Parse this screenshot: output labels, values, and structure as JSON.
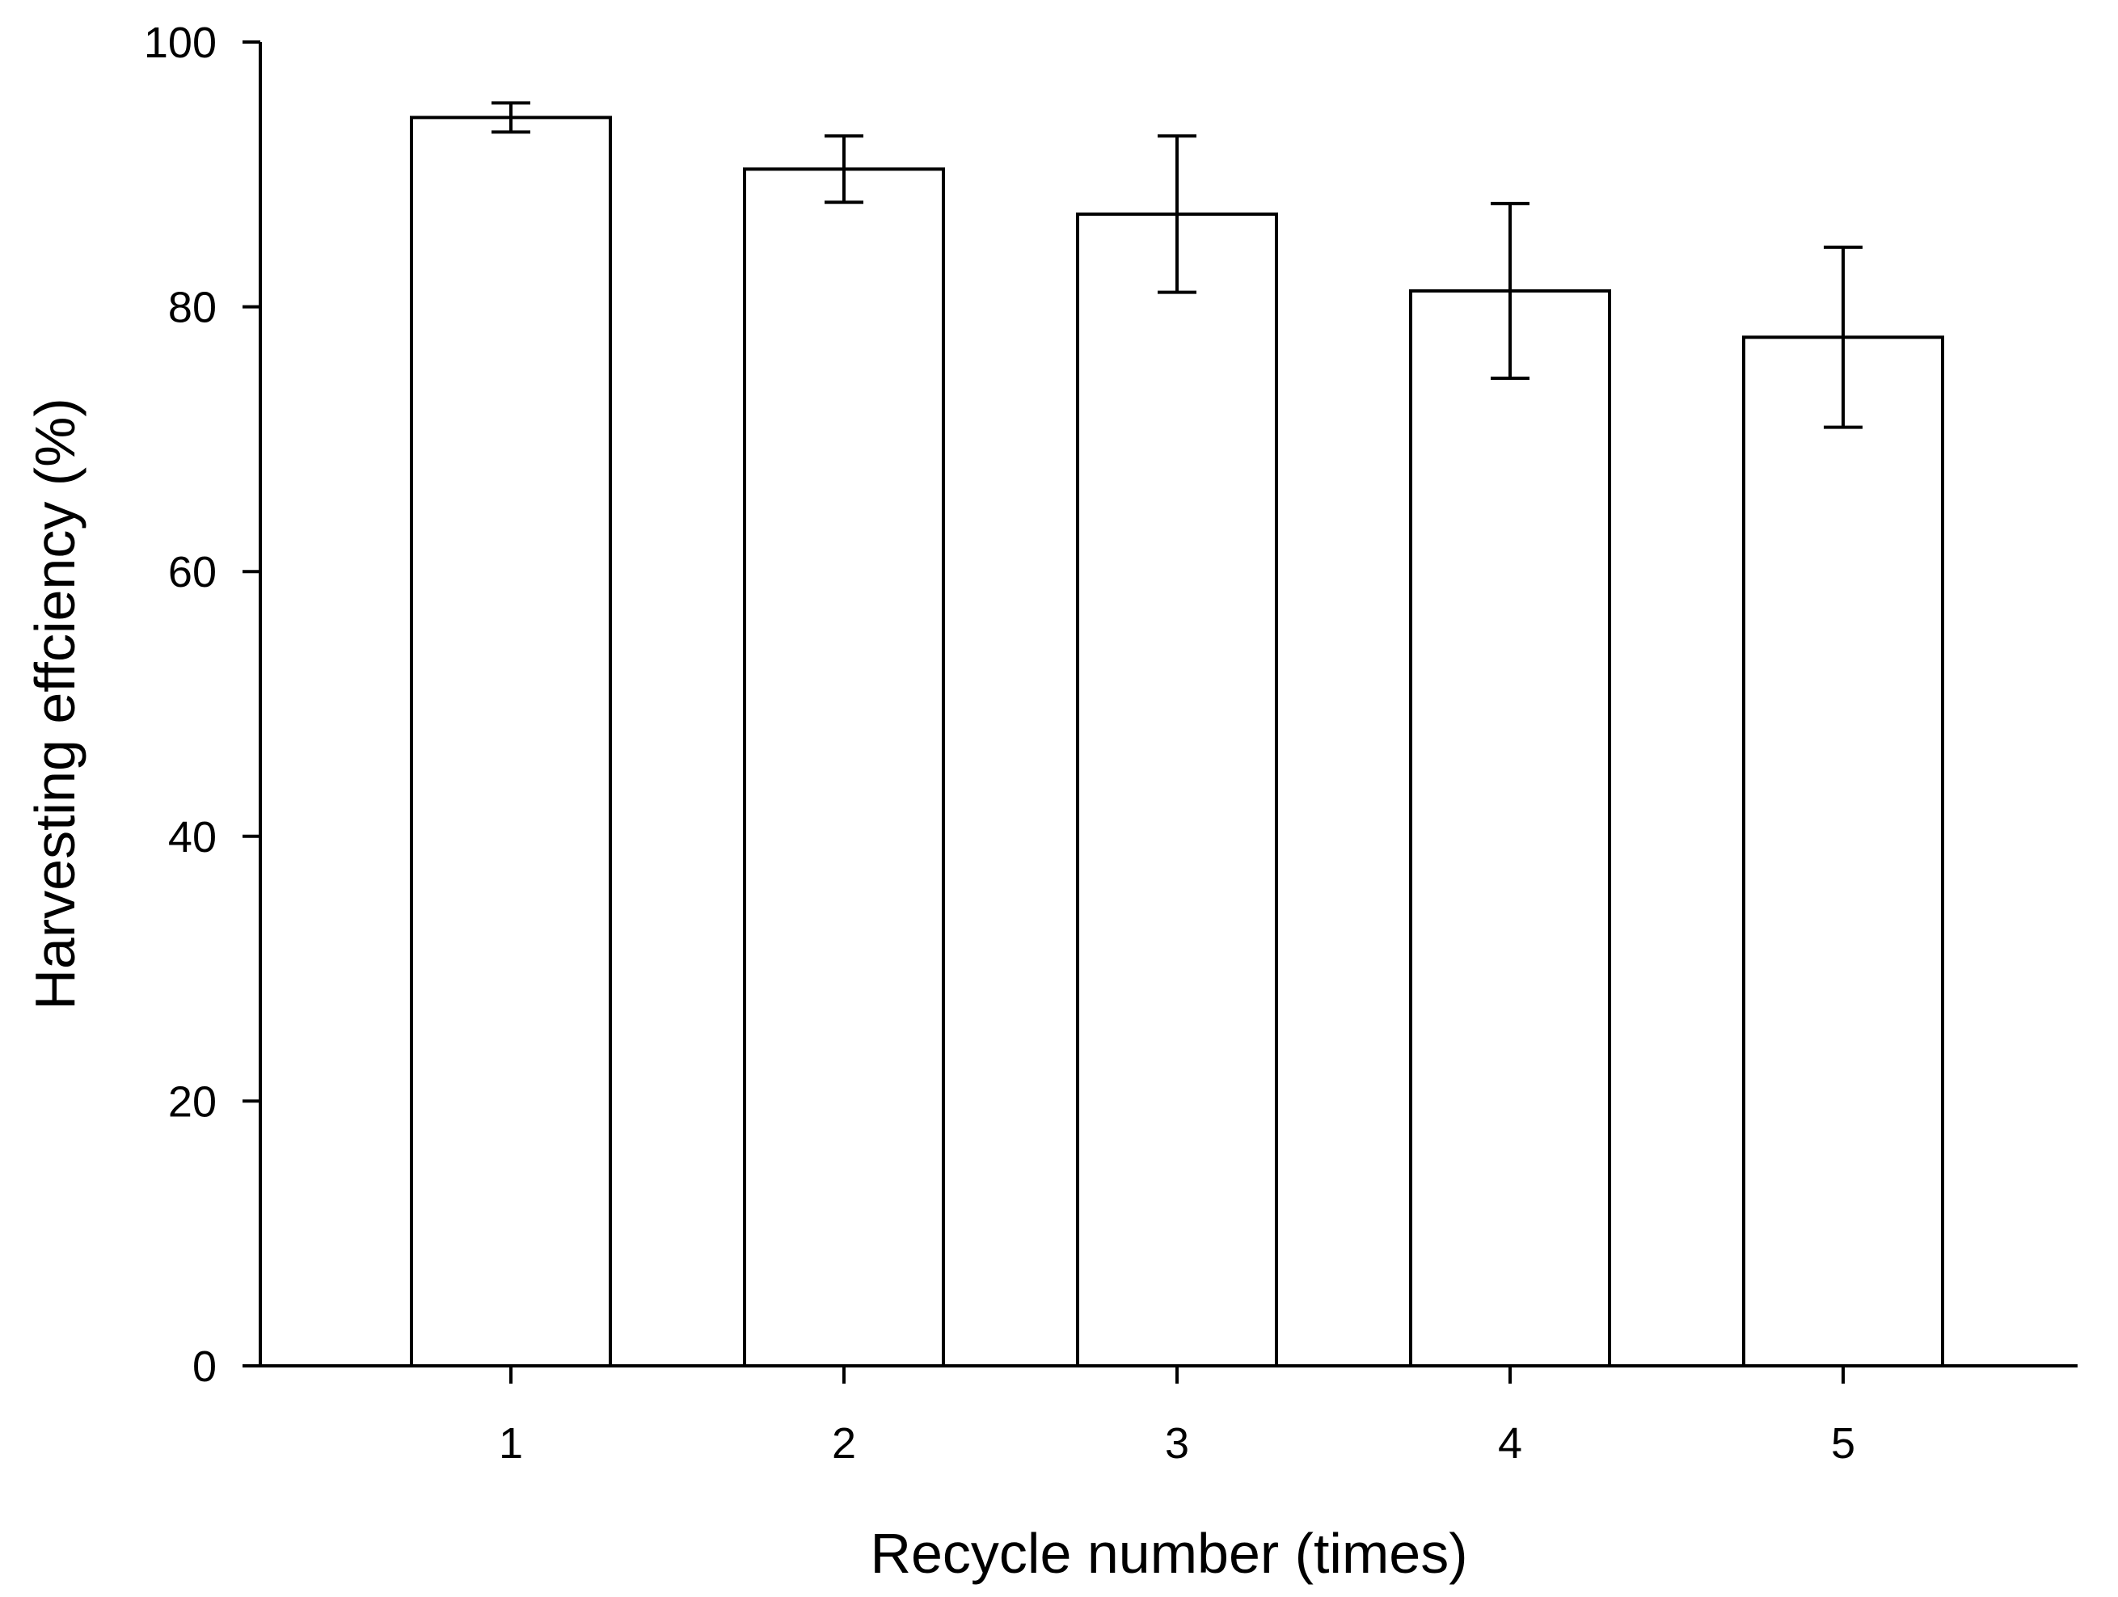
{
  "chart_data": {
    "type": "bar",
    "title": "",
    "xlabel": "Recycle number (times)",
    "ylabel": "Harvesting effciency (%)",
    "categories": [
      "1",
      "2",
      "3",
      "4",
      "5"
    ],
    "values": [
      94.3,
      90.4,
      87.0,
      81.2,
      77.7
    ],
    "error": [
      1.1,
      2.5,
      5.9,
      6.6,
      6.8
    ],
    "ylim": [
      0,
      100
    ],
    "yticks": [
      0,
      20,
      40,
      60,
      80,
      100
    ],
    "ytick_labels": [
      "0",
      "20",
      "40",
      "60",
      "80",
      "100"
    ],
    "grid": false,
    "legend": "none",
    "colors": {
      "bar_fill": "#ffffff",
      "bar_stroke": "#000000",
      "axis": "#000000"
    }
  }
}
